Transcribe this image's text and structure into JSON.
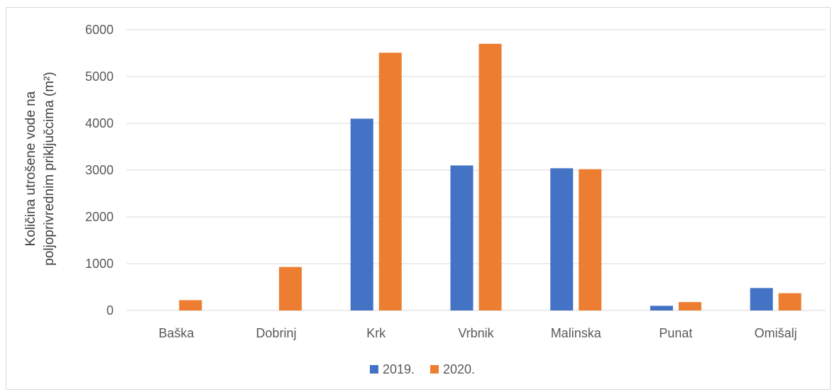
{
  "chart_data": {
    "type": "bar",
    "categories": [
      "Baška",
      "Dobrinj",
      "Krk",
      "Vrbnik",
      "Malinska",
      "Punat",
      "Omišalj"
    ],
    "series": [
      {
        "name": "2019.",
        "color": "#4472c4",
        "values": [
          0,
          0,
          4100,
          3100,
          3040,
          100,
          480
        ]
      },
      {
        "name": "2020.",
        "color": "#ed7d31",
        "values": [
          220,
          930,
          5510,
          5700,
          3020,
          180,
          370
        ]
      }
    ],
    "ylabel_line1": "Količina utrošene vode na",
    "ylabel_line2": "poljoprivrednim priključcima (m²)",
    "ylim": [
      0,
      6000
    ],
    "yticks": [
      0,
      1000,
      2000,
      3000,
      4000,
      5000,
      6000
    ],
    "grid": true,
    "legend": "bottom"
  }
}
